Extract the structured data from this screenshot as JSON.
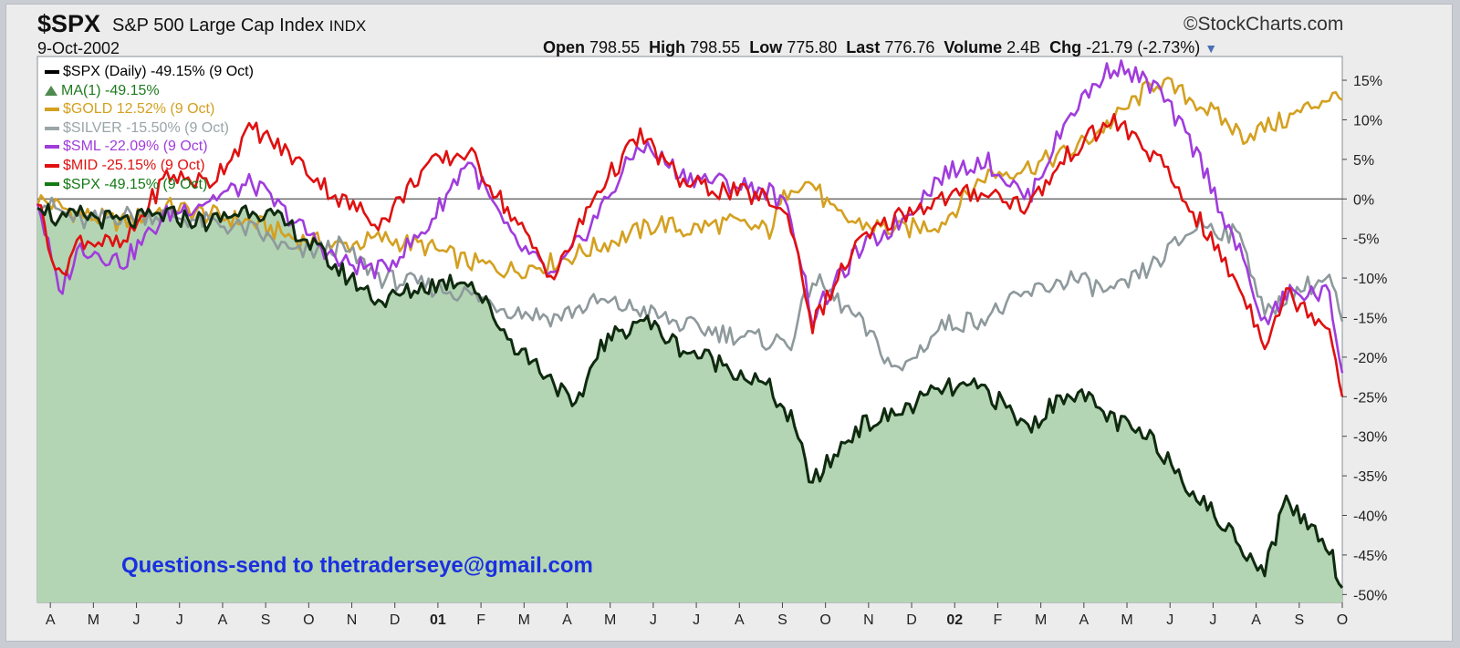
{
  "header": {
    "symbol": "$SPX",
    "name": "S&P 500 Large Cap Index",
    "exchange": "INDX",
    "brand": "©StockCharts.com",
    "date": "9-Oct-2002",
    "open_label": "Open",
    "open_value": "798.55",
    "high_label": "High",
    "high_value": "798.55",
    "low_label": "Low",
    "low_value": "775.80",
    "last_label": "Last",
    "last_value": "776.76",
    "volume_label": "Volume",
    "volume_value": "2.4B",
    "chg_label": "Chg",
    "chg_value": "-21.79 (-2.73%)",
    "chg_icon": "triangle-down-icon"
  },
  "legend": [
    {
      "text": "$SPX (Daily) -49.15% (9 Oct)",
      "color": "#000000",
      "marker": "line"
    },
    {
      "text": "MA(1) -49.15%",
      "color": "#1f7a1f",
      "marker": "area"
    },
    {
      "text": "$GOLD 12.52% (9 Oct)",
      "color": "#d4a020",
      "marker": "line"
    },
    {
      "text": "$SILVER -15.50% (9 Oct)",
      "color": "#9aa5a8",
      "marker": "line"
    },
    {
      "text": "$SML -22.09% (9 Oct)",
      "color": "#a03cdc",
      "marker": "line"
    },
    {
      "text": "$MID -25.15% (9 Oct)",
      "color": "#e01010",
      "marker": "line"
    },
    {
      "text": "$SPX -49.15% (9 Oct)",
      "color": "#137a13",
      "marker": "line"
    }
  ],
  "watermark": "Questions-send to thetraderseye@gmail.com",
  "chart_data": {
    "type": "line",
    "ylabel_unit": "%",
    "ylim": [
      -51,
      18
    ],
    "y_ticks": [
      "15%",
      "10%",
      "5%",
      "0%",
      "-5%",
      "-10%",
      "-15%",
      "-20%",
      "-25%",
      "-30%",
      "-35%",
      "-40%",
      "-45%",
      "-50%"
    ],
    "y_tick_values": [
      15,
      10,
      5,
      0,
      -5,
      -10,
      -15,
      -20,
      -25,
      -30,
      -35,
      -40,
      -45,
      -50
    ],
    "x_ticks": [
      "A",
      "M",
      "J",
      "J",
      "A",
      "S",
      "O",
      "N",
      "D",
      "01",
      "F",
      "M",
      "A",
      "M",
      "J",
      "J",
      "A",
      "S",
      "O",
      "N",
      "D",
      "02",
      "F",
      "M",
      "A",
      "M",
      "J",
      "J",
      "A",
      "S",
      "O"
    ],
    "x_tick_months": [
      0,
      1,
      2,
      3,
      4,
      5,
      6,
      7,
      8,
      9,
      10,
      11,
      12,
      13,
      14,
      15,
      16,
      17,
      18,
      19,
      20,
      21,
      22,
      23,
      24,
      25,
      26,
      27,
      28,
      29,
      30
    ],
    "x_start": "Apr 2000",
    "x_end": "9 Oct 2002",
    "x_end_month": 30.3,
    "grid": "horizontal-zero-line",
    "series": [
      {
        "name": "$GOLD",
        "color": "#d4a020",
        "fill": false,
        "points": [
          [
            0,
            0
          ],
          [
            1,
            -2
          ],
          [
            2,
            -3
          ],
          [
            3,
            -1
          ],
          [
            4,
            -2
          ],
          [
            5,
            -3
          ],
          [
            6,
            -5
          ],
          [
            7,
            -6
          ],
          [
            8,
            -5
          ],
          [
            9,
            -6
          ],
          [
            10,
            -8
          ],
          [
            11,
            -9
          ],
          [
            12,
            -8
          ],
          [
            13,
            -6
          ],
          [
            14,
            -4
          ],
          [
            14.5,
            -3
          ],
          [
            15,
            -4
          ],
          [
            16,
            -3
          ],
          [
            17,
            -4
          ],
          [
            17.5,
            2
          ],
          [
            18,
            2
          ],
          [
            18.5,
            -2
          ],
          [
            19,
            -3
          ],
          [
            20,
            -4
          ],
          [
            21,
            -3
          ],
          [
            22,
            3
          ],
          [
            23,
            4
          ],
          [
            24,
            6
          ],
          [
            25,
            10
          ],
          [
            26,
            15
          ],
          [
            27,
            12
          ],
          [
            28,
            8
          ],
          [
            29,
            10
          ],
          [
            30,
            13
          ],
          [
            30.3,
            12.5
          ]
        ]
      },
      {
        "name": "$SILVER",
        "color": "#8e999c",
        "fill": false,
        "points": [
          [
            0,
            0
          ],
          [
            1,
            -3
          ],
          [
            2,
            -2
          ],
          [
            3,
            -2
          ],
          [
            4,
            -3
          ],
          [
            5,
            -4
          ],
          [
            6,
            -7
          ],
          [
            7,
            -6
          ],
          [
            8,
            -10
          ],
          [
            9,
            -11
          ],
          [
            10,
            -12
          ],
          [
            11,
            -14
          ],
          [
            12,
            -15
          ],
          [
            13,
            -13
          ],
          [
            14,
            -14
          ],
          [
            15,
            -16
          ],
          [
            16,
            -17
          ],
          [
            17,
            -18
          ],
          [
            17.5,
            -18
          ],
          [
            18,
            -10
          ],
          [
            19,
            -15
          ],
          [
            20,
            -22
          ],
          [
            21,
            -16
          ],
          [
            22,
            -15
          ],
          [
            23,
            -12
          ],
          [
            24,
            -10
          ],
          [
            25,
            -12
          ],
          [
            26,
            -8
          ],
          [
            27,
            -3
          ],
          [
            28,
            -5
          ],
          [
            28.5,
            -15
          ],
          [
            29,
            -12
          ],
          [
            30,
            -10
          ],
          [
            30.3,
            -15.5
          ]
        ]
      },
      {
        "name": "$SML",
        "color": "#a03cdc",
        "fill": false,
        "points": [
          [
            0,
            0
          ],
          [
            0.5,
            -12
          ],
          [
            1,
            -6
          ],
          [
            2,
            -8
          ],
          [
            3,
            -2
          ],
          [
            4,
            0
          ],
          [
            5,
            2
          ],
          [
            6,
            -3
          ],
          [
            7,
            -8
          ],
          [
            8,
            -9
          ],
          [
            9,
            -4
          ],
          [
            10,
            5
          ],
          [
            11,
            -5
          ],
          [
            12,
            -10
          ],
          [
            13,
            -2
          ],
          [
            14,
            7
          ],
          [
            15,
            3
          ],
          [
            16,
            2
          ],
          [
            17,
            1
          ],
          [
            17.5,
            -2
          ],
          [
            18,
            -15
          ],
          [
            19,
            -7
          ],
          [
            20,
            -3
          ],
          [
            21,
            3
          ],
          [
            22,
            5
          ],
          [
            23,
            0
          ],
          [
            24,
            11
          ],
          [
            25,
            17
          ],
          [
            26,
            14
          ],
          [
            27,
            5
          ],
          [
            28,
            -8
          ],
          [
            28.5,
            -16
          ],
          [
            29,
            -12
          ],
          [
            30,
            -12
          ],
          [
            30.3,
            -22
          ]
        ]
      },
      {
        "name": "$MID",
        "color": "#e01010",
        "fill": false,
        "points": [
          [
            0,
            0
          ],
          [
            0.5,
            -10
          ],
          [
            1,
            -5
          ],
          [
            2,
            -6
          ],
          [
            3,
            3
          ],
          [
            4,
            2
          ],
          [
            5,
            9
          ],
          [
            6,
            5
          ],
          [
            7,
            0
          ],
          [
            8,
            -3
          ],
          [
            9,
            4
          ],
          [
            10,
            6
          ],
          [
            11,
            -2
          ],
          [
            12,
            -10
          ],
          [
            13,
            1
          ],
          [
            14,
            8
          ],
          [
            15,
            2
          ],
          [
            16,
            1
          ],
          [
            17,
            0
          ],
          [
            17.5,
            -3
          ],
          [
            18,
            -16
          ],
          [
            19,
            -6
          ],
          [
            20,
            -2
          ],
          [
            21,
            0
          ],
          [
            22,
            1
          ],
          [
            23,
            -1
          ],
          [
            24,
            6
          ],
          [
            25,
            10
          ],
          [
            26,
            5
          ],
          [
            27,
            -3
          ],
          [
            28,
            -12
          ],
          [
            28.5,
            -18
          ],
          [
            29,
            -12
          ],
          [
            30,
            -16
          ],
          [
            30.3,
            -25
          ]
        ]
      },
      {
        "name": "$SPX",
        "color": "#0f2a0f",
        "fill": true,
        "fill_color": "#b3d5b3",
        "points": [
          [
            0,
            0
          ],
          [
            0.5,
            -3
          ],
          [
            1,
            -2
          ],
          [
            2,
            -3
          ],
          [
            3,
            -2
          ],
          [
            4,
            -3
          ],
          [
            5,
            -1
          ],
          [
            6,
            -4
          ],
          [
            7,
            -9
          ],
          [
            8,
            -13
          ],
          [
            9,
            -11
          ],
          [
            10,
            -10
          ],
          [
            11,
            -18
          ],
          [
            12,
            -23
          ],
          [
            12.5,
            -27
          ],
          [
            13,
            -19
          ],
          [
            14,
            -15
          ],
          [
            15,
            -19
          ],
          [
            16,
            -21
          ],
          [
            17,
            -24
          ],
          [
            17.5,
            -28
          ],
          [
            18,
            -36
          ],
          [
            19,
            -29
          ],
          [
            20,
            -27
          ],
          [
            21,
            -24
          ],
          [
            22,
            -24
          ],
          [
            23,
            -29
          ],
          [
            24,
            -24
          ],
          [
            25,
            -28
          ],
          [
            26,
            -31
          ],
          [
            27,
            -38
          ],
          [
            28,
            -44
          ],
          [
            28.5,
            -47
          ],
          [
            29,
            -38
          ],
          [
            30,
            -44
          ],
          [
            30.3,
            -49.15
          ]
        ]
      }
    ]
  }
}
